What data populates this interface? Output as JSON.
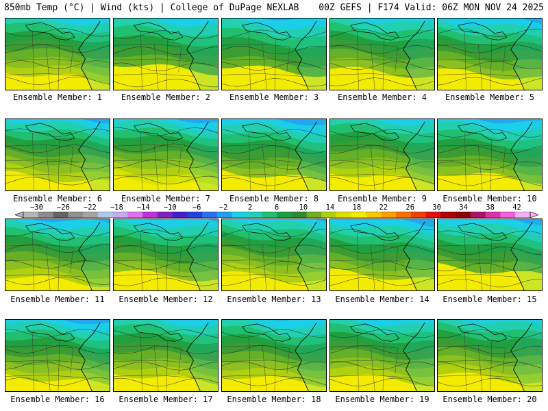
{
  "header": {
    "left": "850mb Temp (°C) | Wind (kts) | College of DuPage NEXLAB",
    "right": "00Z GEFS | F174 Valid: 06Z MON NOV 24 2025"
  },
  "colorbar": {
    "labels": [
      "-30",
      "-26",
      "-22",
      "-18",
      "-14",
      "-10",
      "-6",
      "-2",
      "2",
      "6",
      "10",
      "14",
      "18",
      "22",
      "26",
      "30",
      "34",
      "38",
      "42"
    ],
    "colors": [
      "#b4b4b4",
      "#8c8c8c",
      "#646464",
      "#909090",
      "#a4a4a4",
      "#b0c8e8",
      "#c8a8f0",
      "#e070f0",
      "#c030d8",
      "#8020c0",
      "#4020c8",
      "#2040e0",
      "#2a6ef0",
      "#20a0f0",
      "#1ccfe8",
      "#20d0b8",
      "#20c070",
      "#1aa040",
      "#2e8a2e",
      "#70b020",
      "#b0d010",
      "#e0e000",
      "#f4ec00",
      "#f8c800",
      "#f8a000",
      "#f87000",
      "#f04000",
      "#e01010",
      "#b00000",
      "#8c0000",
      "#b0106a",
      "#e030b0",
      "#f060e0",
      "#f4b0f4"
    ]
  },
  "panels": [
    {
      "label": "Ensemble Member: 1",
      "cold": 0.45
    },
    {
      "label": "Ensemble Member: 2",
      "cold": 1.0
    },
    {
      "label": "Ensemble Member: 3",
      "cold": 0.85
    },
    {
      "label": "Ensemble Member: 4",
      "cold": 0.7
    },
    {
      "label": "Ensemble Member: 5",
      "cold": 0.55
    },
    {
      "label": "Ensemble Member: 6",
      "cold": 0.35
    },
    {
      "label": "Ensemble Member: 7",
      "cold": 0.1
    },
    {
      "label": "Ensemble Member: 8",
      "cold": 0.5
    },
    {
      "label": "Ensemble Member: 9",
      "cold": 0.45
    },
    {
      "label": "Ensemble Member: 10",
      "cold": 0.5
    },
    {
      "label": "Ensemble Member: 11",
      "cold": 0.25
    },
    {
      "label": "Ensemble Member: 12",
      "cold": 0.55
    },
    {
      "label": "Ensemble Member: 13",
      "cold": 0.4
    },
    {
      "label": "Ensemble Member: 14",
      "cold": 0.5
    },
    {
      "label": "Ensemble Member: 15",
      "cold": 0.85
    },
    {
      "label": "Ensemble Member: 16",
      "cold": 0.3
    },
    {
      "label": "Ensemble Member: 17",
      "cold": 0.45
    },
    {
      "label": "Ensemble Member: 18",
      "cold": 0.35
    },
    {
      "label": "Ensemble Member: 19",
      "cold": 0.4
    },
    {
      "label": "Ensemble Member: 20",
      "cold": 0.45
    }
  ]
}
